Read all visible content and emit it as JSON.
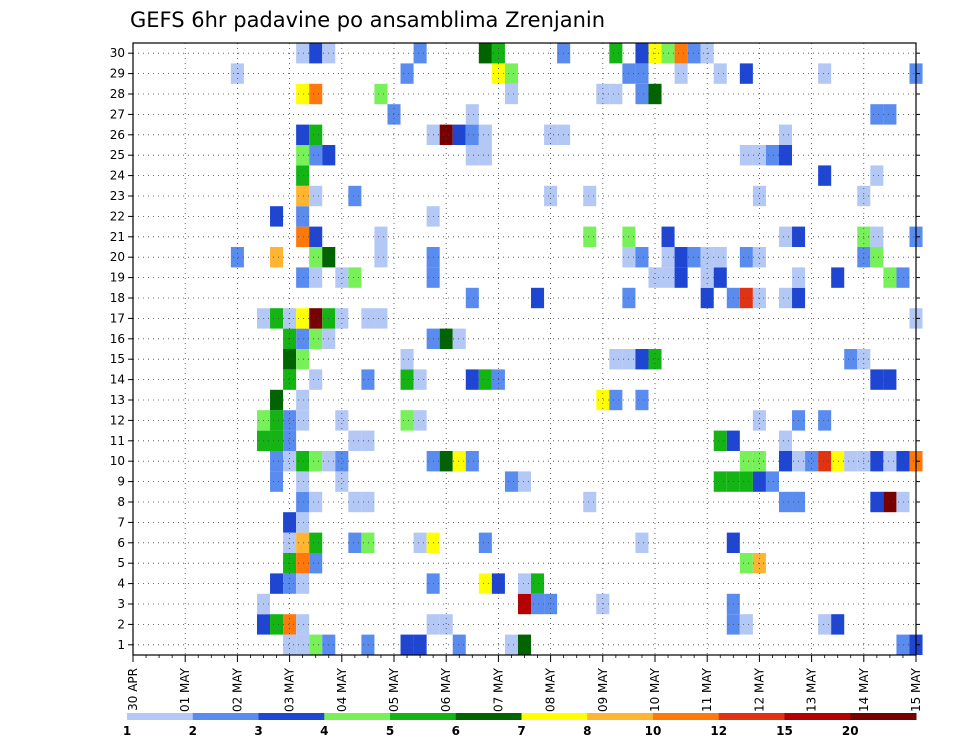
{
  "chart_data": {
    "type": "heatmap",
    "title": "GEFS 6hr padavine po ansamblima Zrenjanin",
    "y_categories": [
      "1",
      "2",
      "3",
      "4",
      "5",
      "6",
      "7",
      "8",
      "9",
      "10",
      "11",
      "12",
      "13",
      "14",
      "15",
      "16",
      "17",
      "18",
      "19",
      "20",
      "21",
      "22",
      "23",
      "24",
      "25",
      "26",
      "27",
      "28",
      "29",
      "30"
    ],
    "x_tick_labels": [
      "30 APR",
      "01 MAY",
      "02 MAY",
      "03 MAY",
      "04 MAY",
      "05 MAY",
      "06 MAY",
      "07 MAY",
      "08 MAY",
      "09 MAY",
      "10 MAY",
      "11 MAY",
      "12 MAY",
      "13 MAY",
      "14 MAY",
      "15 MAY"
    ],
    "x_range_days": [
      0,
      15
    ],
    "time_step_hours": 6,
    "grid": true,
    "colorbar": {
      "placement": "bottom",
      "levels": [
        "1",
        "2",
        "3",
        "4",
        "5",
        "6",
        "7",
        "8",
        "10",
        "12",
        "15",
        "20"
      ],
      "colors": [
        "#b4c8f5",
        "#5a8cf0",
        "#1e46d2",
        "#78f05a",
        "#14b414",
        "#006400",
        "#ffff00",
        "#ffb432",
        "#ff780a",
        "#e13214",
        "#b40000",
        "#780000"
      ]
    },
    "cells": [
      [
        1,
        3.0,
        1
      ],
      [
        1,
        3.25,
        1
      ],
      [
        1,
        3.5,
        4
      ],
      [
        1,
        3.75,
        2
      ],
      [
        1,
        4.5,
        2
      ],
      [
        1,
        5.25,
        3
      ],
      [
        1,
        5.5,
        3
      ],
      [
        1,
        6.25,
        2
      ],
      [
        1,
        7.25,
        1
      ],
      [
        1,
        7.5,
        6
      ],
      [
        1,
        14.75,
        2
      ],
      [
        1,
        15.0,
        3
      ],
      [
        2,
        2.5,
        3
      ],
      [
        2,
        2.75,
        5
      ],
      [
        2,
        3.0,
        9
      ],
      [
        2,
        3.25,
        1
      ],
      [
        2,
        5.75,
        1
      ],
      [
        2,
        6.0,
        1
      ],
      [
        2,
        11.5,
        2
      ],
      [
        2,
        11.75,
        1
      ],
      [
        2,
        13.25,
        1
      ],
      [
        2,
        13.5,
        3
      ],
      [
        3,
        2.5,
        1
      ],
      [
        3,
        7.5,
        11
      ],
      [
        3,
        7.75,
        2
      ],
      [
        3,
        8.0,
        2
      ],
      [
        3,
        9.0,
        1
      ],
      [
        3,
        11.5,
        2
      ],
      [
        4,
        2.75,
        3
      ],
      [
        4,
        3.0,
        2
      ],
      [
        4,
        3.25,
        1
      ],
      [
        4,
        5.75,
        2
      ],
      [
        4,
        6.75,
        7
      ],
      [
        4,
        7.0,
        3
      ],
      [
        4,
        7.5,
        1
      ],
      [
        4,
        7.75,
        5
      ],
      [
        5,
        3.0,
        5
      ],
      [
        5,
        3.25,
        9
      ],
      [
        5,
        3.5,
        2
      ],
      [
        5,
        11.75,
        4
      ],
      [
        5,
        12.0,
        8
      ],
      [
        6,
        3.0,
        1
      ],
      [
        6,
        3.25,
        8
      ],
      [
        6,
        3.5,
        5
      ],
      [
        6,
        4.25,
        2
      ],
      [
        6,
        4.5,
        4
      ],
      [
        6,
        5.5,
        1
      ],
      [
        6,
        5.75,
        7
      ],
      [
        6,
        6.75,
        2
      ],
      [
        6,
        9.75,
        1
      ],
      [
        6,
        11.5,
        3
      ],
      [
        7,
        3.0,
        3
      ],
      [
        7,
        3.25,
        1
      ],
      [
        8,
        3.25,
        2
      ],
      [
        8,
        3.5,
        1
      ],
      [
        8,
        4.25,
        1
      ],
      [
        8,
        4.5,
        1
      ],
      [
        8,
        8.75,
        1
      ],
      [
        8,
        12.5,
        2
      ],
      [
        8,
        12.75,
        2
      ],
      [
        8,
        14.25,
        3
      ],
      [
        8,
        14.5,
        12
      ],
      [
        8,
        14.75,
        1
      ],
      [
        9,
        2.75,
        2
      ],
      [
        9,
        3.25,
        1
      ],
      [
        9,
        4.0,
        1
      ],
      [
        9,
        7.25,
        2
      ],
      [
        9,
        7.5,
        1
      ],
      [
        9,
        11.25,
        5
      ],
      [
        9,
        11.5,
        5
      ],
      [
        9,
        11.75,
        5
      ],
      [
        9,
        12.0,
        3
      ],
      [
        9,
        12.25,
        2
      ],
      [
        10,
        2.75,
        2
      ],
      [
        10,
        3.0,
        1
      ],
      [
        10,
        3.25,
        5
      ],
      [
        10,
        3.5,
        4
      ],
      [
        10,
        3.75,
        1
      ],
      [
        10,
        4.0,
        2
      ],
      [
        10,
        5.75,
        2
      ],
      [
        10,
        6.0,
        6
      ],
      [
        10,
        6.25,
        7
      ],
      [
        10,
        6.5,
        2
      ],
      [
        10,
        11.75,
        4
      ],
      [
        10,
        12.0,
        4
      ],
      [
        10,
        12.5,
        3
      ],
      [
        10,
        12.75,
        1
      ],
      [
        10,
        13.0,
        2
      ],
      [
        10,
        13.25,
        10
      ],
      [
        10,
        13.5,
        7
      ],
      [
        10,
        13.75,
        1
      ],
      [
        10,
        14.0,
        1
      ],
      [
        10,
        14.25,
        3
      ],
      [
        10,
        14.5,
        1
      ],
      [
        10,
        14.75,
        3
      ],
      [
        10,
        15.0,
        9
      ],
      [
        11,
        2.5,
        5
      ],
      [
        11,
        2.75,
        5
      ],
      [
        11,
        3.0,
        2
      ],
      [
        11,
        4.25,
        1
      ],
      [
        11,
        4.5,
        1
      ],
      [
        11,
        11.25,
        5
      ],
      [
        11,
        11.5,
        3
      ],
      [
        11,
        12.5,
        1
      ],
      [
        12,
        2.5,
        4
      ],
      [
        12,
        2.75,
        5
      ],
      [
        12,
        3.0,
        2
      ],
      [
        12,
        3.25,
        1
      ],
      [
        12,
        4.0,
        1
      ],
      [
        12,
        5.25,
        4
      ],
      [
        12,
        5.5,
        1
      ],
      [
        12,
        12.0,
        1
      ],
      [
        12,
        12.75,
        2
      ],
      [
        12,
        13.25,
        2
      ],
      [
        13,
        2.75,
        6
      ],
      [
        13,
        3.25,
        1
      ],
      [
        13,
        9.0,
        7
      ],
      [
        13,
        9.25,
        2
      ],
      [
        13,
        9.75,
        2
      ],
      [
        14,
        3.0,
        5
      ],
      [
        14,
        3.5,
        1
      ],
      [
        14,
        4.5,
        2
      ],
      [
        14,
        5.25,
        5
      ],
      [
        14,
        5.5,
        1
      ],
      [
        14,
        6.5,
        3
      ],
      [
        14,
        6.75,
        5
      ],
      [
        14,
        7.0,
        2
      ],
      [
        14,
        14.25,
        3
      ],
      [
        14,
        14.5,
        3
      ],
      [
        15,
        3.0,
        6
      ],
      [
        15,
        3.25,
        4
      ],
      [
        15,
        5.25,
        1
      ],
      [
        15,
        9.25,
        1
      ],
      [
        15,
        9.5,
        1
      ],
      [
        15,
        9.75,
        3
      ],
      [
        15,
        10.0,
        5
      ],
      [
        15,
        13.75,
        2
      ],
      [
        15,
        14.0,
        1
      ],
      [
        16,
        3.0,
        5
      ],
      [
        16,
        3.25,
        2
      ],
      [
        16,
        3.5,
        4
      ],
      [
        16,
        3.75,
        1
      ],
      [
        16,
        5.75,
        2
      ],
      [
        16,
        6.0,
        6
      ],
      [
        16,
        6.25,
        1
      ],
      [
        17,
        2.5,
        1
      ],
      [
        17,
        2.75,
        5
      ],
      [
        17,
        3.0,
        1
      ],
      [
        17,
        3.25,
        7
      ],
      [
        17,
        3.5,
        12
      ],
      [
        17,
        3.75,
        5
      ],
      [
        17,
        4.0,
        1
      ],
      [
        17,
        4.5,
        1
      ],
      [
        17,
        4.75,
        1
      ],
      [
        17,
        15.0,
        1
      ],
      [
        18,
        6.5,
        2
      ],
      [
        18,
        7.75,
        3
      ],
      [
        18,
        9.5,
        2
      ],
      [
        18,
        11.0,
        3
      ],
      [
        18,
        11.5,
        2
      ],
      [
        18,
        11.75,
        10
      ],
      [
        18,
        12.0,
        1
      ],
      [
        18,
        12.5,
        1
      ],
      [
        18,
        12.75,
        3
      ],
      [
        19,
        3.25,
        2
      ],
      [
        19,
        3.5,
        1
      ],
      [
        19,
        4.0,
        1
      ],
      [
        19,
        4.25,
        4
      ],
      [
        19,
        5.75,
        2
      ],
      [
        19,
        10.0,
        1
      ],
      [
        19,
        10.25,
        1
      ],
      [
        19,
        10.5,
        3
      ],
      [
        19,
        11.0,
        1
      ],
      [
        19,
        11.25,
        3
      ],
      [
        19,
        12.75,
        1
      ],
      [
        19,
        13.5,
        3
      ],
      [
        19,
        14.5,
        4
      ],
      [
        19,
        14.75,
        2
      ],
      [
        20,
        2.0,
        2
      ],
      [
        20,
        2.75,
        8
      ],
      [
        20,
        3.5,
        4
      ],
      [
        20,
        3.75,
        6
      ],
      [
        20,
        4.75,
        1
      ],
      [
        20,
        5.75,
        2
      ],
      [
        20,
        9.5,
        1
      ],
      [
        20,
        9.75,
        2
      ],
      [
        20,
        10.25,
        1
      ],
      [
        20,
        10.5,
        3
      ],
      [
        20,
        10.75,
        2
      ],
      [
        20,
        11.0,
        1
      ],
      [
        20,
        11.25,
        1
      ],
      [
        20,
        11.75,
        2
      ],
      [
        20,
        12.0,
        1
      ],
      [
        20,
        14.0,
        2
      ],
      [
        20,
        14.25,
        4
      ],
      [
        21,
        3.25,
        9
      ],
      [
        21,
        3.5,
        3
      ],
      [
        21,
        4.75,
        1
      ],
      [
        21,
        8.75,
        4
      ],
      [
        21,
        9.5,
        4
      ],
      [
        21,
        10.25,
        3
      ],
      [
        21,
        12.5,
        1
      ],
      [
        21,
        12.75,
        3
      ],
      [
        21,
        14.0,
        4
      ],
      [
        21,
        14.25,
        1
      ],
      [
        21,
        15.0,
        2
      ],
      [
        22,
        2.75,
        3
      ],
      [
        22,
        3.25,
        2
      ],
      [
        22,
        5.75,
        1
      ],
      [
        23,
        3.25,
        8
      ],
      [
        23,
        3.5,
        1
      ],
      [
        23,
        4.25,
        2
      ],
      [
        23,
        8.0,
        1
      ],
      [
        23,
        8.75,
        1
      ],
      [
        23,
        12.0,
        1
      ],
      [
        23,
        14.0,
        1
      ],
      [
        24,
        3.25,
        5
      ],
      [
        24,
        13.25,
        3
      ],
      [
        24,
        14.25,
        1
      ],
      [
        25,
        3.25,
        4
      ],
      [
        25,
        3.5,
        2
      ],
      [
        25,
        3.75,
        3
      ],
      [
        25,
        6.5,
        1
      ],
      [
        25,
        6.75,
        1
      ],
      [
        25,
        11.75,
        1
      ],
      [
        25,
        12.0,
        1
      ],
      [
        25,
        12.25,
        2
      ],
      [
        25,
        12.5,
        3
      ],
      [
        26,
        3.25,
        3
      ],
      [
        26,
        3.5,
        5
      ],
      [
        26,
        5.75,
        1
      ],
      [
        26,
        6.0,
        12
      ],
      [
        26,
        6.25,
        3
      ],
      [
        26,
        6.5,
        2
      ],
      [
        26,
        6.75,
        1
      ],
      [
        26,
        8.0,
        1
      ],
      [
        26,
        8.25,
        1
      ],
      [
        26,
        12.5,
        1
      ],
      [
        27,
        5.0,
        2
      ],
      [
        27,
        6.5,
        1
      ],
      [
        27,
        14.25,
        2
      ],
      [
        27,
        14.5,
        2
      ],
      [
        28,
        3.25,
        7
      ],
      [
        28,
        3.5,
        9
      ],
      [
        28,
        4.75,
        4
      ],
      [
        28,
        7.25,
        1
      ],
      [
        28,
        9.0,
        1
      ],
      [
        28,
        9.25,
        1
      ],
      [
        28,
        9.75,
        2
      ],
      [
        28,
        10.0,
        6
      ],
      [
        29,
        2.0,
        1
      ],
      [
        29,
        5.25,
        2
      ],
      [
        29,
        7.0,
        7
      ],
      [
        29,
        7.25,
        4
      ],
      [
        29,
        9.5,
        2
      ],
      [
        29,
        9.75,
        2
      ],
      [
        29,
        10.5,
        1
      ],
      [
        29,
        11.25,
        1
      ],
      [
        29,
        11.75,
        3
      ],
      [
        29,
        13.25,
        1
      ],
      [
        29,
        15.0,
        2
      ],
      [
        30,
        3.25,
        1
      ],
      [
        30,
        3.5,
        3
      ],
      [
        30,
        3.75,
        1
      ],
      [
        30,
        5.5,
        2
      ],
      [
        30,
        6.75,
        6
      ],
      [
        30,
        7.0,
        5
      ],
      [
        30,
        8.25,
        2
      ],
      [
        30,
        9.25,
        5
      ],
      [
        30,
        9.75,
        3
      ],
      [
        30,
        10.0,
        7
      ],
      [
        30,
        10.25,
        4
      ],
      [
        30,
        10.5,
        9
      ],
      [
        30,
        10.75,
        2
      ],
      [
        30,
        11.0,
        1
      ]
    ]
  }
}
